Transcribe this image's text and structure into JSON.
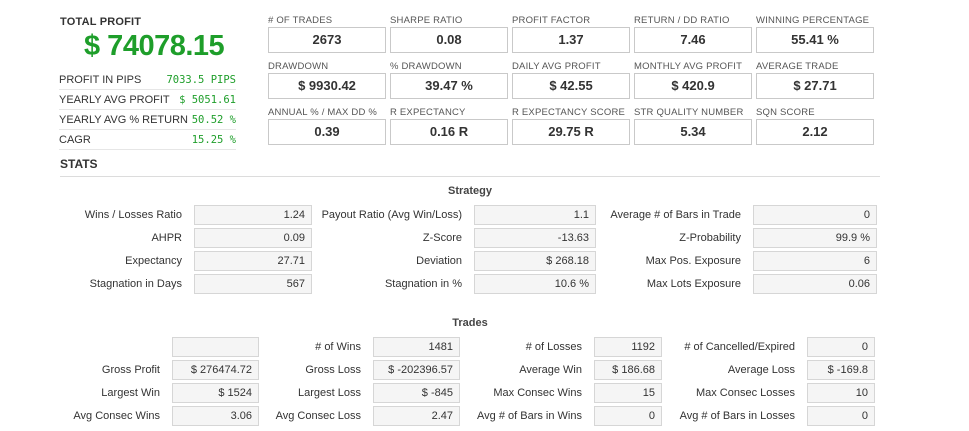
{
  "total_profit": {
    "label": "TOTAL PROFIT",
    "value": "$ 74078.15"
  },
  "side_stats": [
    {
      "label": "PROFIT IN PIPS",
      "value": "7033.5 PIPS"
    },
    {
      "label": "YEARLY AVG PROFIT",
      "value": "$ 5051.61"
    },
    {
      "label": "YEARLY AVG % RETURN",
      "value": "50.52 %"
    },
    {
      "label": "CAGR",
      "value": "15.25 %"
    }
  ],
  "tiles": [
    {
      "label": "# OF TRADES",
      "value": "2673"
    },
    {
      "label": "SHARPE RATIO",
      "value": "0.08"
    },
    {
      "label": "PROFIT FACTOR",
      "value": "1.37"
    },
    {
      "label": "RETURN / DD RATIO",
      "value": "7.46"
    },
    {
      "label": "WINNING PERCENTAGE",
      "value": "55.41 %"
    },
    {
      "label": "DRAWDOWN",
      "value": "$ 9930.42"
    },
    {
      "label": "% DRAWDOWN",
      "value": "39.47 %"
    },
    {
      "label": "DAILY AVG PROFIT",
      "value": "$ 42.55"
    },
    {
      "label": "MONTHLY AVG PROFIT",
      "value": "$ 420.9"
    },
    {
      "label": "AVERAGE TRADE",
      "value": "$ 27.71"
    },
    {
      "label": "ANNUAL % / MAX DD %",
      "value": "0.39"
    },
    {
      "label": "R EXPECTANCY",
      "value": "0.16 R"
    },
    {
      "label": "R EXPECTANCY SCORE",
      "value": "29.75 R"
    },
    {
      "label": "STR QUALITY NUMBER",
      "value": "5.34"
    },
    {
      "label": "SQN SCORE",
      "value": "2.12"
    }
  ],
  "stats_heading": "STATS",
  "strategy": {
    "title": "Strategy",
    "rows": [
      [
        {
          "label": "Wins / Losses Ratio",
          "value": "1.24"
        },
        {
          "label": "Payout Ratio (Avg Win/Loss)",
          "value": "1.1"
        },
        {
          "label": "Average # of Bars in Trade",
          "value": "0"
        }
      ],
      [
        {
          "label": "AHPR",
          "value": "0.09"
        },
        {
          "label": "Z-Score",
          "value": "-13.63"
        },
        {
          "label": "Z-Probability",
          "value": "99.9 %"
        }
      ],
      [
        {
          "label": "Expectancy",
          "value": "27.71"
        },
        {
          "label": "Deviation",
          "value": "$ 268.18"
        },
        {
          "label": "Max Pos. Exposure",
          "value": "6"
        }
      ],
      [
        {
          "label": "Stagnation in Days",
          "value": "567"
        },
        {
          "label": "Stagnation in %",
          "value": "10.6 %"
        },
        {
          "label": "Max Lots Exposure",
          "value": "0.06"
        }
      ]
    ]
  },
  "trades": {
    "title": "Trades",
    "rows": [
      [
        {
          "label": "",
          "value": ""
        },
        {
          "label": "# of Wins",
          "value": "1481"
        },
        {
          "label": "# of Losses",
          "value": "1192"
        },
        {
          "label": "# of Cancelled/Expired",
          "value": "0"
        }
      ],
      [
        {
          "label": "Gross Profit",
          "value": "$ 276474.72"
        },
        {
          "label": "Gross Loss",
          "value": "$ -202396.57"
        },
        {
          "label": "Average Win",
          "value": "$ 186.68"
        },
        {
          "label": "Average Loss",
          "value": "$ -169.8"
        }
      ],
      [
        {
          "label": "Largest Win",
          "value": "$ 1524"
        },
        {
          "label": "Largest Loss",
          "value": "$ -845"
        },
        {
          "label": "Max Consec Wins",
          "value": "15"
        },
        {
          "label": "Max Consec Losses",
          "value": "10"
        }
      ],
      [
        {
          "label": "Avg Consec Wins",
          "value": "3.06"
        },
        {
          "label": "Avg Consec Loss",
          "value": "2.47"
        },
        {
          "label": "Avg # of Bars in Wins",
          "value": "0"
        },
        {
          "label": "Avg # of Bars in Losses",
          "value": "0"
        }
      ]
    ]
  }
}
